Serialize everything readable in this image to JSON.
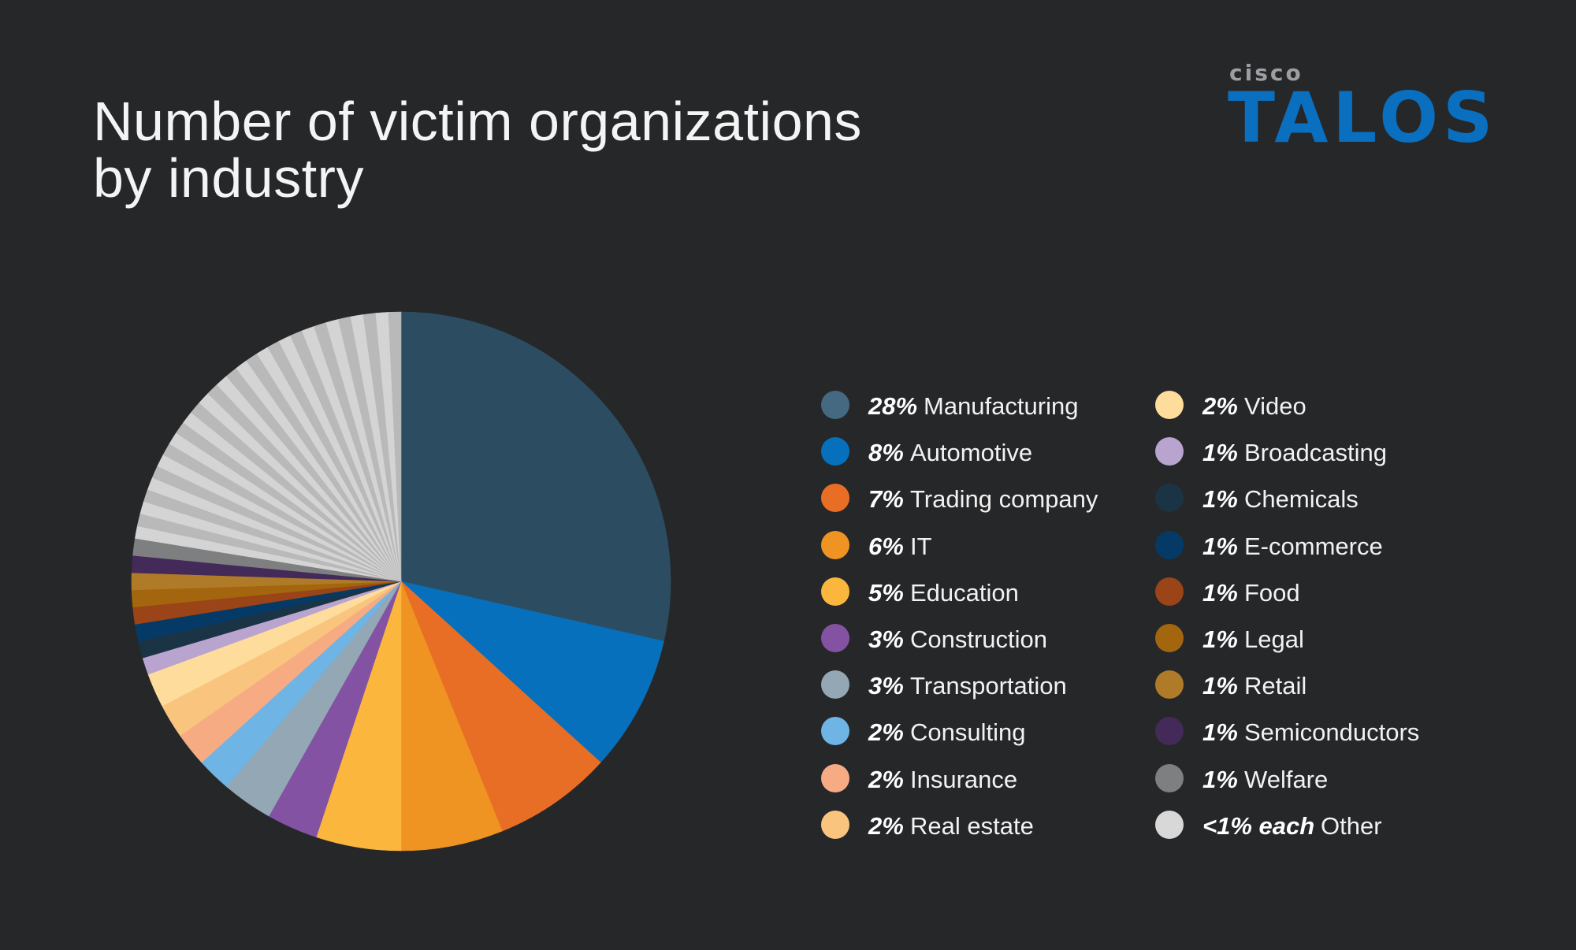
{
  "chart_data": {
    "type": "pie",
    "title": "Number of victim organizations by industry",
    "title_lines": [
      "Number of victim organizations",
      "by industry"
    ],
    "legend_placement": "right",
    "slices": [
      {
        "label": "Manufacturing",
        "pct_label": "28%",
        "value": 28,
        "color": "#2c4d61",
        "legend_color": "#446980"
      },
      {
        "label": "Automotive",
        "pct_label": "8%",
        "value": 8,
        "color": "#0670bd",
        "legend_color": "#0670bd"
      },
      {
        "label": "Trading company",
        "pct_label": "7%",
        "value": 7,
        "color": "#e96e25",
        "legend_color": "#e96e25"
      },
      {
        "label": "IT",
        "pct_label": "6%",
        "value": 6,
        "color": "#ef9322",
        "legend_color": "#ef9322"
      },
      {
        "label": "Education",
        "pct_label": "5%",
        "value": 5,
        "color": "#fbb73d",
        "legend_color": "#fbb73d"
      },
      {
        "label": "Construction",
        "pct_label": "3%",
        "value": 3,
        "color": "#8452a3",
        "legend_color": "#8452a3"
      },
      {
        "label": "Transportation",
        "pct_label": "3%",
        "value": 3,
        "color": "#93a7b4",
        "legend_color": "#93a7b4"
      },
      {
        "label": "Consulting",
        "pct_label": "2%",
        "value": 2,
        "color": "#6eb4e5",
        "legend_color": "#6eb4e5"
      },
      {
        "label": "Insurance",
        "pct_label": "2%",
        "value": 2,
        "color": "#f6ab83",
        "legend_color": "#f6ab83"
      },
      {
        "label": "Real estate",
        "pct_label": "2%",
        "value": 2,
        "color": "#f9c57e",
        "legend_color": "#f9c57e"
      },
      {
        "label": "Video",
        "pct_label": "2%",
        "value": 2,
        "color": "#fedc9b",
        "legend_color": "#fedc9b"
      },
      {
        "label": "Broadcasting",
        "pct_label": "1%",
        "value": 1,
        "color": "#b9a4d0",
        "legend_color": "#b9a4d0"
      },
      {
        "label": "Chemicals",
        "pct_label": "1%",
        "value": 1,
        "color": "#1b3445",
        "legend_color": "#1b3445"
      },
      {
        "label": "E-commerce",
        "pct_label": "1%",
        "value": 1,
        "color": "#053a66",
        "legend_color": "#053a66"
      },
      {
        "label": "Food",
        "pct_label": "1%",
        "value": 1,
        "color": "#9a4417",
        "legend_color": "#9a4417"
      },
      {
        "label": "Legal",
        "pct_label": "1%",
        "value": 1,
        "color": "#a3660f",
        "legend_color": "#a3660f"
      },
      {
        "label": "Retail",
        "pct_label": "1%",
        "value": 1,
        "color": "#b07b28",
        "legend_color": "#b07b28"
      },
      {
        "label": "Semiconductors",
        "pct_label": "1%",
        "value": 1,
        "color": "#432a58",
        "legend_color": "#432a58"
      },
      {
        "label": "Welfare",
        "pct_label": "1%",
        "value": 1,
        "color": "#7e7f81",
        "legend_color": "#7e7f81"
      }
    ],
    "other": {
      "label": "Other",
      "pct_label": "<1% each",
      "value": 22,
      "count": 30,
      "colors": [
        "#d4d4d4",
        "#b9b9b9"
      ],
      "legend_color": "#d8d8d8"
    }
  },
  "logo": {
    "small": "cisco",
    "large": "TALOS"
  }
}
